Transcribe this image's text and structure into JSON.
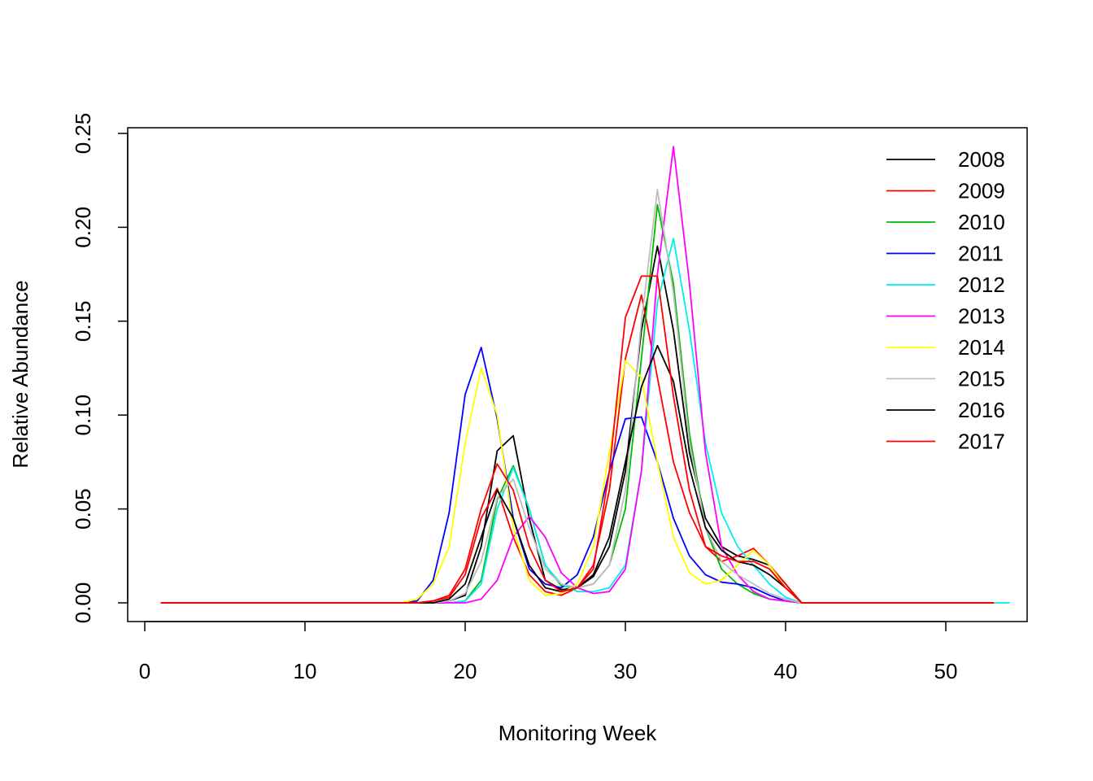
{
  "chart_data": {
    "type": "line",
    "title": "",
    "xlabel": "Monitoring Week",
    "ylabel": "Relative Abundance",
    "xlim": [
      0,
      54
    ],
    "ylim": [
      0,
      0.25
    ],
    "xticks": [
      0,
      10,
      20,
      30,
      40,
      50
    ],
    "yticks": [
      0.0,
      0.05,
      0.1,
      0.15,
      0.2,
      0.25
    ],
    "xtick_labels": [
      "0",
      "10",
      "20",
      "30",
      "40",
      "50"
    ],
    "ytick_labels": [
      "0.00",
      "0.05",
      "0.10",
      "0.15",
      "0.20",
      "0.25"
    ],
    "grid": false,
    "legend_position": "top-right",
    "series": [
      {
        "name": "2008",
        "color": "#000000",
        "x": [
          1,
          16,
          17,
          18,
          19,
          20,
          21,
          22,
          23,
          24,
          25,
          26,
          27,
          28,
          29,
          30,
          31,
          32,
          33,
          34,
          35,
          36,
          37,
          38,
          39,
          40,
          41,
          53
        ],
        "y": [
          0,
          0,
          0,
          0,
          0.001,
          0.004,
          0.03,
          0.081,
          0.089,
          0.045,
          0.012,
          0.007,
          0.008,
          0.014,
          0.03,
          0.07,
          0.145,
          0.19,
          0.145,
          0.08,
          0.045,
          0.03,
          0.025,
          0.023,
          0.02,
          0.01,
          0,
          0
        ]
      },
      {
        "name": "2009",
        "color": "#ff0000",
        "x": [
          1,
          16,
          17,
          18,
          19,
          20,
          21,
          22,
          23,
          24,
          25,
          26,
          27,
          28,
          29,
          30,
          31,
          32,
          33,
          34,
          35,
          36,
          37,
          38,
          39,
          40,
          41,
          53
        ],
        "y": [
          0,
          0,
          0,
          0.001,
          0.003,
          0.015,
          0.045,
          0.061,
          0.035,
          0.015,
          0.006,
          0.004,
          0.008,
          0.02,
          0.06,
          0.13,
          0.164,
          0.12,
          0.075,
          0.048,
          0.03,
          0.022,
          0.025,
          0.029,
          0.02,
          0.01,
          0,
          0
        ]
      },
      {
        "name": "2010",
        "color": "#00bb00",
        "x": [
          1,
          16,
          17,
          18,
          19,
          20,
          21,
          22,
          23,
          24,
          25,
          26,
          27,
          28,
          29,
          30,
          31,
          32,
          33,
          34,
          35,
          36,
          37,
          38,
          39,
          40,
          41,
          53
        ],
        "y": [
          0,
          0,
          0,
          0,
          0,
          0.001,
          0.012,
          0.055,
          0.073,
          0.05,
          0.02,
          0.009,
          0.008,
          0.01,
          0.02,
          0.05,
          0.13,
          0.212,
          0.17,
          0.09,
          0.04,
          0.018,
          0.01,
          0.005,
          0.002,
          0.001,
          0,
          0
        ]
      },
      {
        "name": "2011",
        "color": "#0000ff",
        "x": [
          1,
          16,
          17,
          18,
          19,
          20,
          21,
          22,
          23,
          24,
          25,
          26,
          27,
          28,
          29,
          30,
          31,
          32,
          33,
          34,
          35,
          36,
          37,
          38,
          39,
          40,
          41,
          53
        ],
        "y": [
          0,
          0,
          0.001,
          0.012,
          0.048,
          0.111,
          0.136,
          0.098,
          0.045,
          0.018,
          0.01,
          0.008,
          0.015,
          0.035,
          0.07,
          0.098,
          0.099,
          0.075,
          0.045,
          0.025,
          0.015,
          0.011,
          0.01,
          0.008,
          0.004,
          0.001,
          0,
          0
        ]
      },
      {
        "name": "2012",
        "color": "#00eeee",
        "x": [
          1,
          16,
          17,
          18,
          19,
          20,
          21,
          22,
          23,
          24,
          25,
          26,
          27,
          28,
          29,
          30,
          31,
          32,
          33,
          34,
          35,
          36,
          37,
          38,
          39,
          40,
          41,
          54
        ],
        "y": [
          0,
          0,
          0,
          0,
          0,
          0.001,
          0.01,
          0.05,
          0.072,
          0.05,
          0.02,
          0.01,
          0.006,
          0.006,
          0.008,
          0.02,
          0.07,
          0.16,
          0.194,
          0.145,
          0.085,
          0.048,
          0.03,
          0.02,
          0.01,
          0.003,
          0,
          0
        ]
      },
      {
        "name": "2013",
        "color": "#ff00ff",
        "x": [
          1,
          16,
          17,
          18,
          19,
          20,
          21,
          22,
          23,
          24,
          25,
          26,
          27,
          28,
          29,
          30,
          31,
          32,
          33,
          34,
          35,
          36,
          37,
          38,
          39,
          40,
          41,
          53
        ],
        "y": [
          0,
          0,
          0,
          0,
          0,
          0,
          0.002,
          0.012,
          0.035,
          0.046,
          0.035,
          0.016,
          0.008,
          0.005,
          0.006,
          0.018,
          0.07,
          0.175,
          0.243,
          0.17,
          0.08,
          0.03,
          0.015,
          0.006,
          0.002,
          0.001,
          0,
          0
        ]
      },
      {
        "name": "2014",
        "color": "#ffff00",
        "x": [
          1,
          16,
          17,
          18,
          19,
          20,
          21,
          22,
          23,
          24,
          25,
          26,
          27,
          28,
          29,
          30,
          31,
          32,
          33,
          34,
          35,
          36,
          37,
          38,
          39,
          40,
          41,
          53
        ],
        "y": [
          0,
          0,
          0.002,
          0.01,
          0.03,
          0.085,
          0.125,
          0.1,
          0.04,
          0.012,
          0.004,
          0.005,
          0.01,
          0.03,
          0.08,
          0.129,
          0.12,
          0.075,
          0.035,
          0.016,
          0.01,
          0.012,
          0.02,
          0.028,
          0.02,
          0.008,
          0,
          0
        ]
      },
      {
        "name": "2015",
        "color": "#bebebe",
        "x": [
          1,
          16,
          17,
          18,
          19,
          20,
          21,
          22,
          23,
          24,
          25,
          26,
          27,
          28,
          29,
          30,
          31,
          32,
          33,
          34,
          35,
          36,
          37,
          38,
          39,
          40,
          41,
          53
        ],
        "y": [
          0,
          0,
          0,
          0,
          0.001,
          0.005,
          0.022,
          0.056,
          0.066,
          0.04,
          0.018,
          0.01,
          0.008,
          0.01,
          0.02,
          0.06,
          0.15,
          0.22,
          0.165,
          0.085,
          0.04,
          0.022,
          0.015,
          0.01,
          0.005,
          0.002,
          0,
          0
        ]
      },
      {
        "name": "2016",
        "color": "#000000",
        "x": [
          1,
          16,
          17,
          18,
          19,
          20,
          21,
          22,
          23,
          24,
          25,
          26,
          27,
          28,
          29,
          30,
          31,
          32,
          33,
          34,
          35,
          36,
          37,
          38,
          39,
          40,
          41,
          53
        ],
        "y": [
          0,
          0,
          0,
          0,
          0.002,
          0.01,
          0.035,
          0.06,
          0.045,
          0.02,
          0.008,
          0.006,
          0.008,
          0.015,
          0.035,
          0.075,
          0.115,
          0.137,
          0.118,
          0.072,
          0.04,
          0.028,
          0.022,
          0.02,
          0.015,
          0.008,
          0,
          0
        ]
      },
      {
        "name": "2017",
        "color": "#ff0000",
        "x": [
          1,
          16,
          17,
          18,
          19,
          20,
          21,
          22,
          23,
          24,
          25,
          26,
          27,
          28,
          29,
          30,
          31,
          32,
          33,
          34,
          35,
          36,
          37,
          38,
          39,
          40,
          41,
          53
        ],
        "y": [
          0,
          0,
          0,
          0.001,
          0.004,
          0.018,
          0.05,
          0.074,
          0.06,
          0.03,
          0.012,
          0.006,
          0.008,
          0.018,
          0.07,
          0.152,
          0.174,
          0.174,
          0.11,
          0.06,
          0.03,
          0.025,
          0.022,
          0.022,
          0.018,
          0.008,
          0,
          0
        ]
      }
    ]
  }
}
